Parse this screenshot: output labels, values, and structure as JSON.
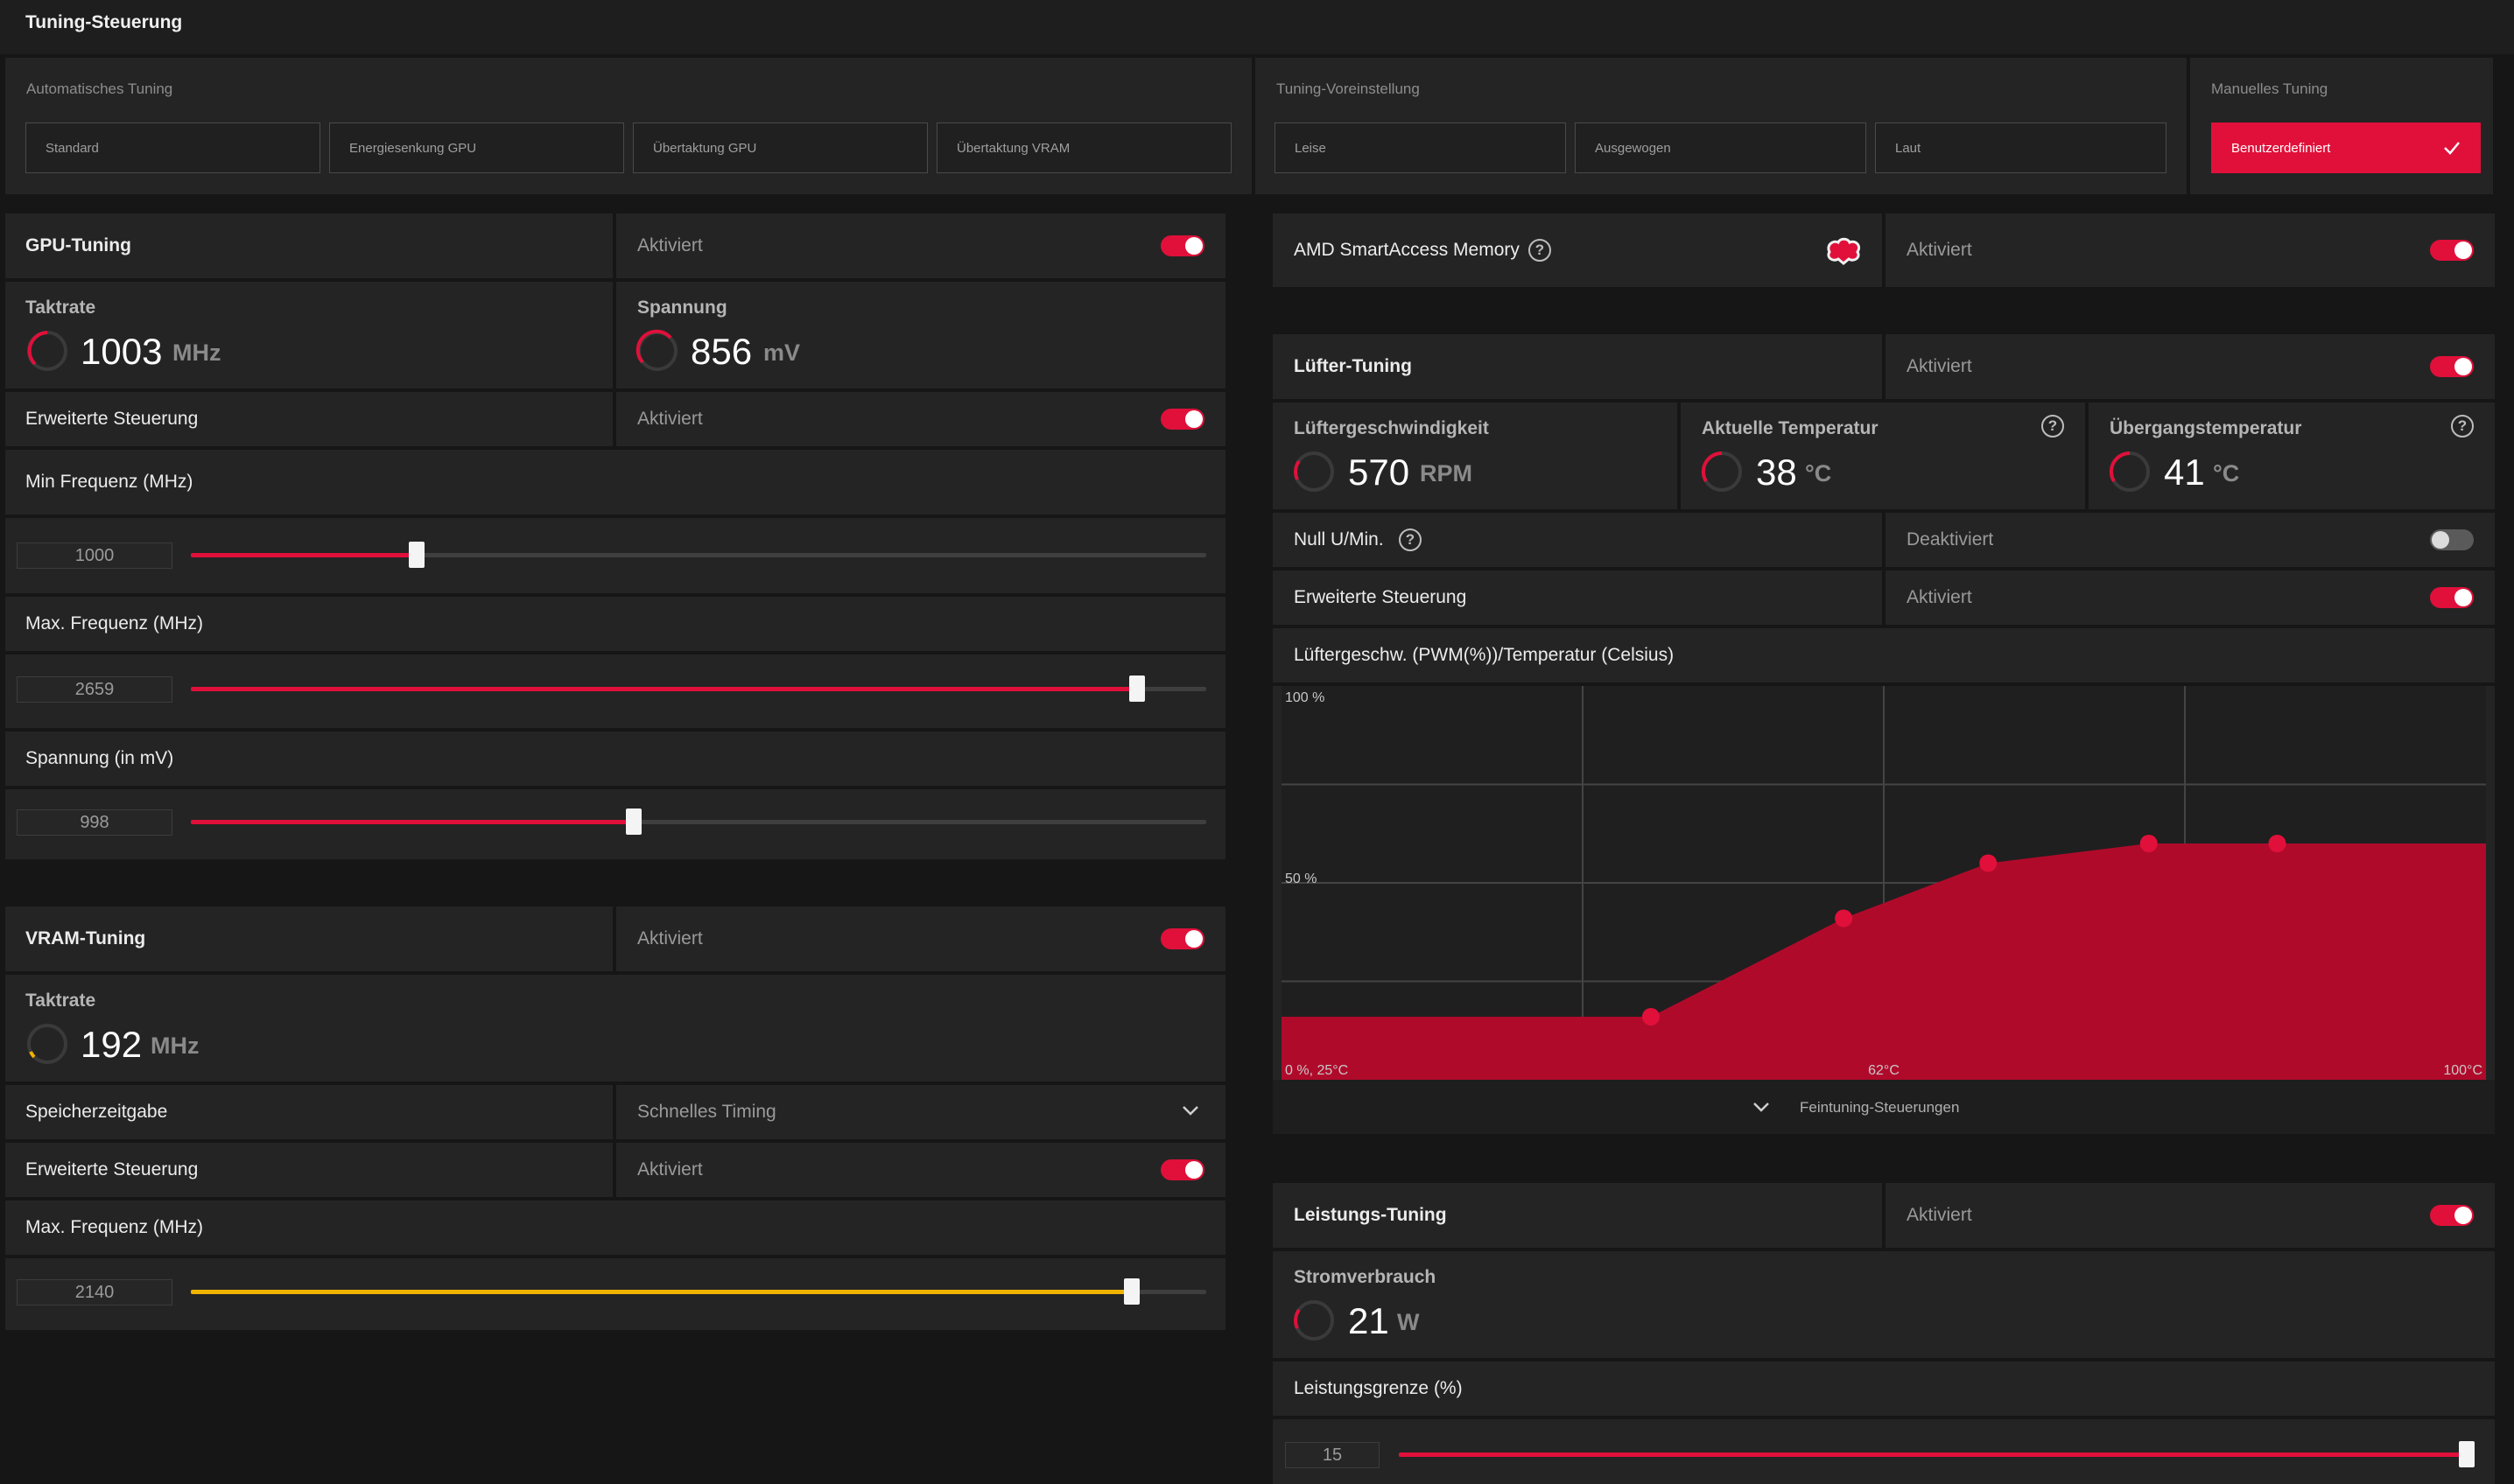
{
  "header": {
    "title": "Tuning-Steuerung"
  },
  "auto_tuning": {
    "title": "Automatisches Tuning",
    "buttons": [
      "Standard",
      "Energiesenkung GPU",
      "Übertaktung GPU",
      "Übertaktung VRAM"
    ]
  },
  "preset": {
    "title": "Tuning-Voreinstellung",
    "buttons": [
      "Leise",
      "Ausgewogen",
      "Laut"
    ]
  },
  "manual": {
    "title": "Manuelles Tuning",
    "button": "Benutzerdefiniert",
    "check_icon": "checkmark-icon"
  },
  "gpu": {
    "title": "GPU-Tuning",
    "status": "Aktiviert",
    "enabled": true,
    "clock_label": "Taktrate",
    "clock_value": "1003",
    "clock_unit": "MHz",
    "voltage_label": "Spannung",
    "voltage_value": "856",
    "voltage_unit": "mV",
    "advanced_label": "Erweiterte Steuerung",
    "advanced_status": "Aktiviert",
    "advanced_enabled": true,
    "min_freq_label": "Min Frequenz (MHz)",
    "min_freq_value": "1000",
    "min_freq_fraction": 0.222,
    "max_freq_label": "Max. Frequenz (MHz)",
    "max_freq_value": "2659",
    "max_freq_fraction": 0.932,
    "voltage_slider_label": "Spannung (in mV)",
    "voltage_slider_value": "998",
    "voltage_slider_fraction": 0.436
  },
  "vram": {
    "title": "VRAM-Tuning",
    "status": "Aktiviert",
    "enabled": true,
    "clock_label": "Taktrate",
    "clock_value": "192",
    "clock_unit": "MHz",
    "timing_label": "Speicherzeitgabe",
    "timing_value": "Schnelles Timing",
    "advanced_label": "Erweiterte Steuerung",
    "advanced_status": "Aktiviert",
    "advanced_enabled": true,
    "max_freq_label": "Max. Frequenz (MHz)",
    "max_freq_value": "2140",
    "max_freq_fraction": 0.927
  },
  "sam": {
    "title": "AMD SmartAccess Memory",
    "status": "Aktiviert",
    "enabled": true
  },
  "fan": {
    "title": "Lüfter-Tuning",
    "status": "Aktiviert",
    "enabled": true,
    "speed_label": "Lüftergeschwindigkeit",
    "speed_value": "570",
    "speed_unit": "RPM",
    "temp_label": "Aktuelle Temperatur",
    "temp_value": "38",
    "temp_unit": "°C",
    "junction_label": "Übergangstemperatur",
    "junction_value": "41",
    "junction_unit": "°C",
    "zero_rpm_label": "Null U/Min.",
    "zero_rpm_status": "Deaktiviert",
    "zero_rpm_enabled": false,
    "advanced_label": "Erweiterte Steuerung",
    "advanced_status": "Aktiviert",
    "advanced_enabled": true,
    "curve_title": "Lüftergeschw. (PWM(%))/Temperatur (Celsius)",
    "fine_tuning": "Feintuning-Steuerungen"
  },
  "chart_data": {
    "type": "area",
    "title": "Lüftergeschw. (PWM(%))/Temperatur (Celsius)",
    "y_tick_labels": [
      "100 %",
      "50 %",
      "0 %, 25°C"
    ],
    "x_tick_labels": [
      "62°C",
      "100°C"
    ],
    "xlim": [
      25,
      100
    ],
    "ylim": [
      0,
      100
    ],
    "x": [
      25,
      48,
      60,
      69,
      79,
      87,
      100
    ],
    "y": [
      16,
      16,
      41,
      55,
      60,
      60,
      60
    ],
    "markers": [
      [
        48,
        16
      ],
      [
        60,
        41
      ],
      [
        69,
        55
      ],
      [
        79,
        60
      ],
      [
        87,
        60
      ]
    ],
    "grid": true,
    "color": "#b00a2b"
  },
  "power": {
    "title": "Leistungs-Tuning",
    "status": "Aktiviert",
    "enabled": true,
    "consumption_label": "Stromverbrauch",
    "consumption_value": "21",
    "consumption_unit": "W",
    "limit_label": "Leistungsgrenze (%)",
    "limit_value": "15",
    "limit_fraction": 1.0
  },
  "colors": {
    "accent": "#e0103a",
    "vram_accent": "#f0b400",
    "panel": "#242424",
    "background": "#161616"
  }
}
